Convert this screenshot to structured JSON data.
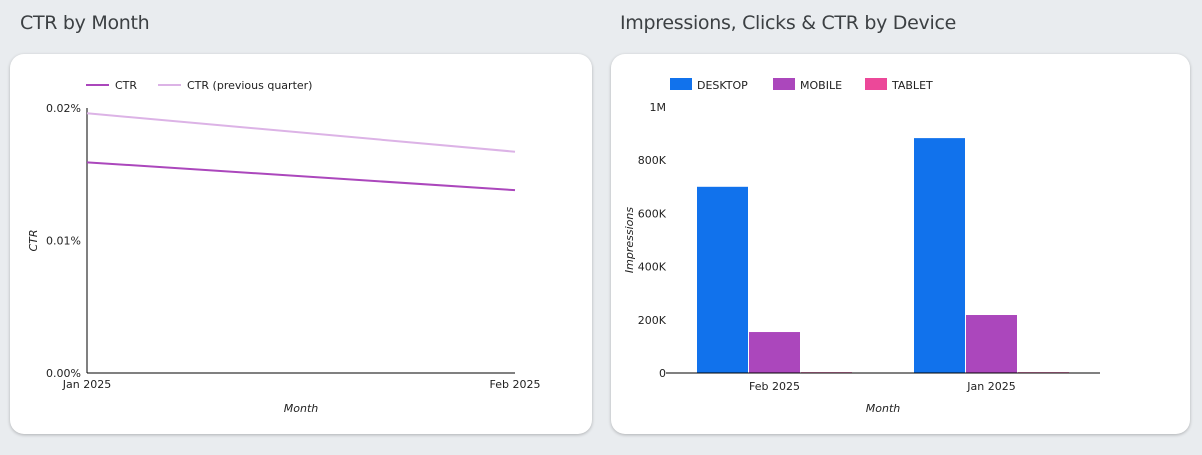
{
  "chart_data": [
    {
      "type": "line",
      "title": "CTR by Month",
      "xlabel": "Month",
      "ylabel": "CTR",
      "x": [
        "Jan 2025",
        "Feb 2025"
      ],
      "yticks": [
        "0.00%",
        "0.01%",
        "0.02%"
      ],
      "ylim": [
        0,
        0.02
      ],
      "legend_position": "top-left",
      "series": [
        {
          "name": "CTR",
          "values": [
            0.0159,
            0.0138
          ],
          "color": "#ab47bc"
        },
        {
          "name": "CTR (previous quarter)",
          "values": [
            0.0196,
            0.0167
          ],
          "color": "#dcb3e6"
        }
      ]
    },
    {
      "type": "bar",
      "title": "Impressions, Clicks & CTR by Device",
      "xlabel": "Month",
      "ylabel": "Impressions",
      "categories": [
        "Feb 2025",
        "Jan 2025"
      ],
      "yticks": [
        "0",
        "200K",
        "400K",
        "600K",
        "800K",
        "1M"
      ],
      "ylim": [
        0,
        1000000
      ],
      "legend_position": "top-left",
      "series": [
        {
          "name": "DESKTOP",
          "values": [
            700000,
            883000
          ],
          "color": "#1172ec"
        },
        {
          "name": "MOBILE",
          "values": [
            154000,
            218000
          ],
          "color": "#ab47bc"
        },
        {
          "name": "TABLET",
          "values": [
            3000,
            3000
          ],
          "color": "#ec4899"
        }
      ]
    }
  ]
}
